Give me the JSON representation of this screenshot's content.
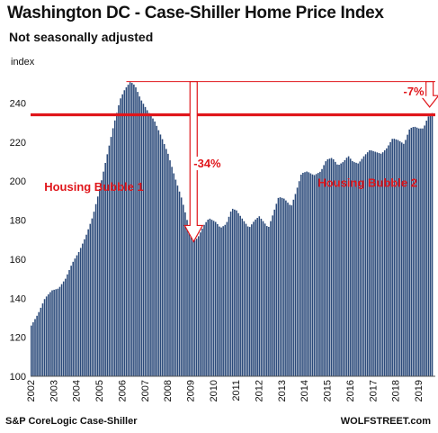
{
  "chart_data": {
    "type": "bar",
    "title": "Washington DC - Case-Shiller Home Price Index",
    "subtitle": "Not seasonally adjusted",
    "ylabel": "index",
    "ylim": [
      100,
      255
    ],
    "yticks": [
      100,
      120,
      140,
      160,
      180,
      200,
      220,
      240
    ],
    "xlim": [
      2002,
      2019.75
    ],
    "xticks": [
      "2002",
      "2003",
      "2004",
      "2005",
      "2006",
      "2007",
      "2008",
      "2009",
      "2010",
      "2011",
      "2012",
      "2013",
      "2014",
      "2015",
      "2016",
      "2017",
      "2018",
      "2019"
    ],
    "frequency": "monthly",
    "bar_color": "#2b4a7a",
    "anchors": [
      [
        2002.0,
        126
      ],
      [
        2002.3,
        132
      ],
      [
        2002.6,
        140
      ],
      [
        2002.9,
        144
      ],
      [
        2003.2,
        145
      ],
      [
        2003.5,
        150
      ],
      [
        2003.8,
        158
      ],
      [
        2004.1,
        164
      ],
      [
        2004.4,
        172
      ],
      [
        2004.7,
        182
      ],
      [
        2005.0,
        196
      ],
      [
        2005.3,
        212
      ],
      [
        2005.6,
        228
      ],
      [
        2005.9,
        242
      ],
      [
        2006.1,
        247
      ],
      [
        2006.35,
        251
      ],
      [
        2006.55,
        249
      ],
      [
        2006.8,
        242
      ],
      [
        2007.1,
        236
      ],
      [
        2007.4,
        231
      ],
      [
        2007.7,
        223
      ],
      [
        2008.0,
        214
      ],
      [
        2008.3,
        202
      ],
      [
        2008.6,
        191
      ],
      [
        2008.9,
        177
      ],
      [
        2009.1,
        169
      ],
      [
        2009.3,
        171
      ],
      [
        2009.6,
        178
      ],
      [
        2009.8,
        181
      ],
      [
        2010.1,
        179
      ],
      [
        2010.3,
        176
      ],
      [
        2010.55,
        178
      ],
      [
        2010.8,
        186
      ],
      [
        2011.0,
        185
      ],
      [
        2011.3,
        180
      ],
      [
        2011.55,
        176
      ],
      [
        2011.8,
        180
      ],
      [
        2012.0,
        182
      ],
      [
        2012.2,
        179
      ],
      [
        2012.4,
        176
      ],
      [
        2012.6,
        183
      ],
      [
        2012.85,
        192
      ],
      [
        2013.1,
        191
      ],
      [
        2013.4,
        187
      ],
      [
        2013.6,
        194
      ],
      [
        2013.85,
        204
      ],
      [
        2014.1,
        205
      ],
      [
        2014.4,
        203
      ],
      [
        2014.7,
        205
      ],
      [
        2014.95,
        211
      ],
      [
        2015.2,
        212
      ],
      [
        2015.45,
        208
      ],
      [
        2015.7,
        210
      ],
      [
        2015.9,
        213
      ],
      [
        2016.1,
        210
      ],
      [
        2016.35,
        209
      ],
      [
        2016.6,
        213
      ],
      [
        2016.85,
        216
      ],
      [
        2017.1,
        215
      ],
      [
        2017.35,
        214
      ],
      [
        2017.6,
        217
      ],
      [
        2017.85,
        222
      ],
      [
        2018.1,
        221
      ],
      [
        2018.35,
        219
      ],
      [
        2018.6,
        227
      ],
      [
        2018.8,
        228
      ],
      [
        2019.0,
        227
      ],
      [
        2019.2,
        227
      ],
      [
        2019.4,
        233
      ],
      [
        2019.6,
        235
      ]
    ],
    "reference_lines": [
      {
        "value": 251,
        "color": "#e0161b",
        "style": "thin"
      },
      {
        "value": 234,
        "color": "#e0161b",
        "style": "thick"
      }
    ],
    "annotations": [
      {
        "text": "Housing Bubble 1",
        "x": 2002.6,
        "y": 195,
        "color": "#e0161b"
      },
      {
        "text": "-34%",
        "x": 2009.15,
        "y": 207,
        "color": "#e0161b"
      },
      {
        "text": "Housing Bubble 2",
        "x": 2014.6,
        "y": 197,
        "color": "#e0161b"
      },
      {
        "text": "-7%",
        "x": 2018.35,
        "y": 244,
        "color": "#e0161b"
      }
    ],
    "arrows": [
      {
        "from": [
          2009.15,
          251
        ],
        "to": [
          2009.15,
          169
        ],
        "color": "#e0161b"
      },
      {
        "from": [
          2019.5,
          251
        ],
        "to": [
          2019.5,
          238
        ],
        "color": "#e0161b"
      }
    ]
  },
  "footer": {
    "source": "S&P CoreLogic Case-Shiller",
    "brand": "WOLFSTREET.com"
  }
}
